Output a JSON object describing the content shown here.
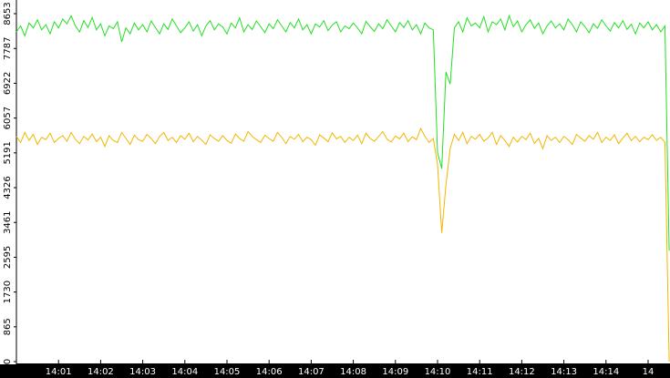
{
  "chart_data": {
    "type": "line",
    "xlim": [
      0,
      155.2
    ],
    "xticks": [
      {
        "value": 10,
        "label": "14:01"
      },
      {
        "value": 20,
        "label": "14:02"
      },
      {
        "value": 30,
        "label": "14:03"
      },
      {
        "value": 40,
        "label": "14:04"
      },
      {
        "value": 50,
        "label": "14:05"
      },
      {
        "value": 60,
        "label": "14:06"
      },
      {
        "value": 70,
        "label": "14:07"
      },
      {
        "value": 80,
        "label": "14:08"
      },
      {
        "value": 90,
        "label": "14:09"
      },
      {
        "value": 100,
        "label": "14:10"
      },
      {
        "value": 110,
        "label": "14:11"
      },
      {
        "value": 120,
        "label": "14:12"
      },
      {
        "value": 130,
        "label": "14:13"
      },
      {
        "value": 140,
        "label": "14:14"
      },
      {
        "value": 150,
        "label": "14"
      }
    ],
    "ylim": [
      0,
      8653
    ],
    "yticks": [
      0,
      865,
      1730,
      2595,
      3461,
      4326,
      5191,
      6057,
      6922,
      7787,
      8653
    ],
    "series": [
      {
        "color": "#22e022",
        "values": [
          8200,
          8350,
          8100,
          8420,
          8300,
          8500,
          8250,
          8380,
          8150,
          8450,
          8300,
          8520,
          8400,
          8600,
          8350,
          8200,
          8480,
          8310,
          8560,
          8250,
          8400,
          8100,
          8350,
          8280,
          8450,
          7950,
          8300,
          8150,
          8420,
          8250,
          8380,
          8200,
          8470,
          8310,
          8150,
          8400,
          8260,
          8520,
          8350,
          8180,
          8300,
          8450,
          8220,
          8380,
          8100,
          8350,
          8480,
          8250,
          8400,
          8320,
          8150,
          8420,
          8300,
          8550,
          8200,
          8380,
          8260,
          8470,
          8330,
          8180,
          8400,
          8280,
          8500,
          8350,
          8200,
          8430,
          8300,
          8520,
          8250,
          8380,
          8150,
          8400,
          8320,
          8480,
          8230,
          8370,
          8450,
          8200,
          8350,
          8280,
          8420,
          8300,
          8150,
          8460,
          8330,
          8210,
          8400,
          8280,
          8500,
          8350,
          8200,
          8430,
          8310,
          8480,
          8250,
          8380,
          8150,
          8420,
          8300,
          8250,
          5200,
          4800,
          7200,
          6900,
          8300,
          8450,
          8200,
          8550,
          8350,
          8420,
          8300,
          8580,
          8200,
          8450,
          8380,
          8520,
          8250,
          8600,
          8330,
          8470,
          8200,
          8380,
          8500,
          8290,
          8420,
          8150,
          8350,
          8470,
          8300,
          8400,
          8250,
          8520,
          8380,
          8200,
          8450,
          8330,
          8180,
          8400,
          8290,
          8500,
          8350,
          8220,
          8430,
          8300,
          8480,
          8260,
          8390,
          8150,
          8420,
          8300,
          8450,
          8250,
          8380,
          8200,
          8350,
          2760
        ]
      },
      {
        "color": "#f2b600",
        "values": [
          5600,
          5450,
          5700,
          5500,
          5650,
          5400,
          5580,
          5520,
          5680,
          5450,
          5550,
          5620,
          5480,
          5700,
          5530,
          5420,
          5600,
          5510,
          5660,
          5470,
          5580,
          5350,
          5620,
          5500,
          5450,
          5700,
          5550,
          5400,
          5630,
          5520,
          5480,
          5650,
          5550,
          5420,
          5600,
          5700,
          5500,
          5580,
          5450,
          5620,
          5530,
          5680,
          5470,
          5600,
          5510,
          5400,
          5640,
          5550,
          5480,
          5620,
          5500,
          5430,
          5660,
          5550,
          5480,
          5720,
          5600,
          5520,
          5450,
          5630,
          5550,
          5480,
          5700,
          5580,
          5420,
          5600,
          5530,
          5650,
          5470,
          5580,
          5520,
          5380,
          5640,
          5560,
          5470,
          5690,
          5540,
          5600,
          5450,
          5580,
          5500,
          5630,
          5420,
          5680,
          5550,
          5480,
          5600,
          5720,
          5530,
          5460,
          5610,
          5540,
          5680,
          5470,
          5590,
          5520,
          5800,
          5600,
          5450,
          5550,
          4900,
          3200,
          4400,
          5300,
          5650,
          5500,
          5700,
          5420,
          5600,
          5530,
          5650,
          5480,
          5560,
          5700,
          5400,
          5620,
          5500,
          5350,
          5580,
          5460,
          5600,
          5520,
          5680,
          5430,
          5550,
          5300,
          5620,
          5500,
          5580,
          5450,
          5600,
          5520,
          5400,
          5650,
          5560,
          5480,
          5620,
          5530,
          5700,
          5450,
          5580,
          5500,
          5640,
          5420,
          5560,
          5680,
          5500,
          5600,
          5470,
          5580,
          5520,
          5640,
          5500,
          5580,
          5450,
          0
        ]
      }
    ]
  }
}
